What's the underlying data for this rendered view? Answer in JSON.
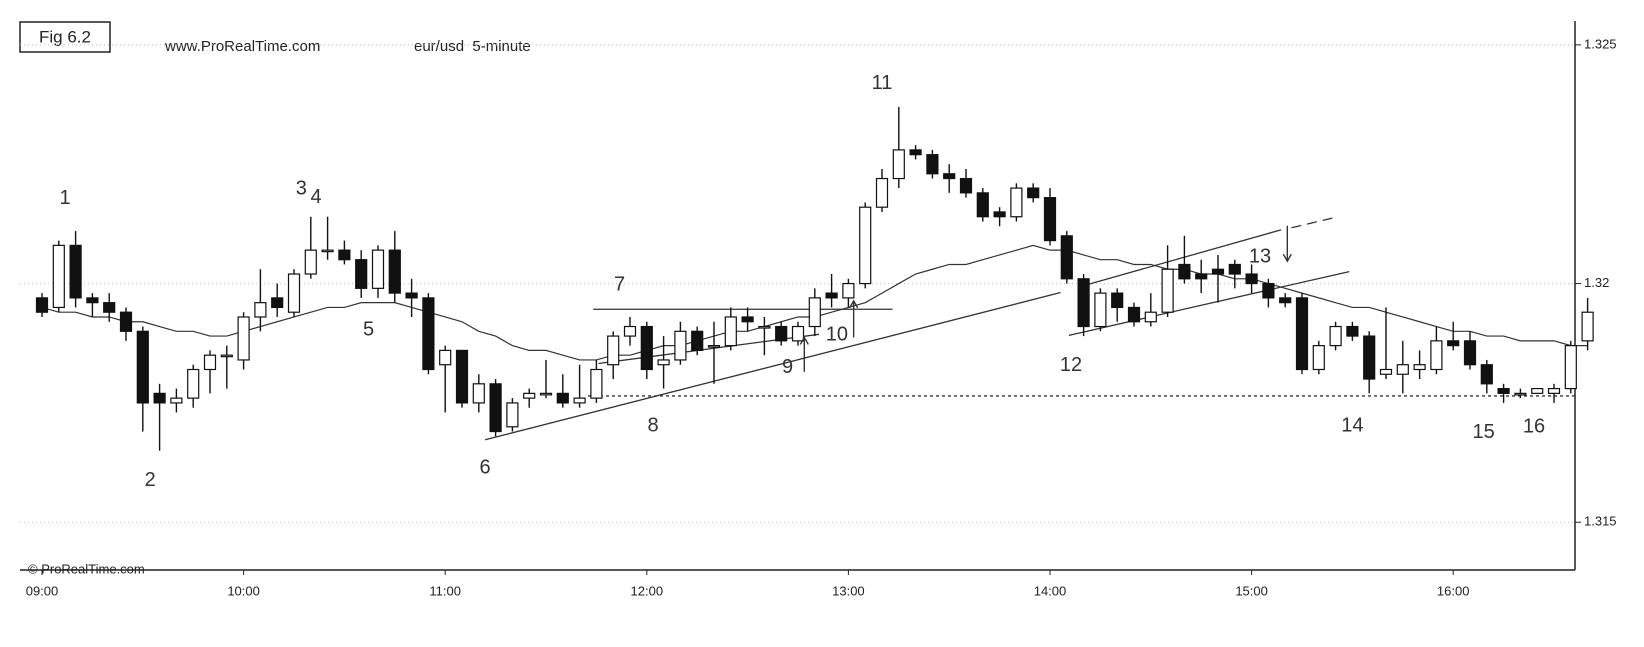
{
  "chart_data": {
    "type": "candlestick",
    "figure_label": "Fig 6.2",
    "source": "www.ProRealTime.com",
    "subtitle": "eur/usd  5-minute",
    "watermark": "© ProRealTime.com",
    "categories": [
      "09:00",
      null,
      null,
      null,
      null,
      null,
      null,
      null,
      null,
      null,
      null,
      null,
      "10:00",
      null,
      null,
      null,
      null,
      null,
      null,
      null,
      null,
      null,
      null,
      null,
      "11:00",
      null,
      null,
      null,
      null,
      null,
      null,
      null,
      null,
      null,
      null,
      null,
      "12:00",
      null,
      null,
      null,
      null,
      null,
      null,
      null,
      null,
      null,
      null,
      null,
      "13:00",
      null,
      null,
      null,
      null,
      null,
      null,
      null,
      null,
      null,
      null,
      null,
      "14:00",
      null,
      null,
      null,
      null,
      null,
      null,
      null,
      null,
      null,
      null,
      null,
      "15:00",
      null,
      null,
      null,
      null,
      null,
      null,
      null,
      null,
      null,
      null,
      null,
      "16:00",
      null,
      null,
      null,
      null,
      null,
      null,
      null,
      null
    ],
    "open": [
      1.3197,
      1.3195,
      1.3208,
      1.3197,
      1.3196,
      1.3194,
      1.319,
      1.3177,
      1.3175,
      1.3176,
      1.3182,
      1.3185,
      1.3184,
      1.3193,
      1.3197,
      1.3194,
      1.3202,
      1.3207,
      1.3207,
      1.3205,
      1.3199,
      1.3207,
      1.3198,
      1.3197,
      1.3183,
      1.3186,
      1.3175,
      1.3179,
      1.317,
      1.3176,
      1.3177,
      1.3177,
      1.3175,
      1.3176,
      1.3183,
      1.3189,
      1.3191,
      1.3183,
      1.3184,
      1.319,
      1.3187,
      1.3187,
      1.3193,
      1.3191,
      1.3191,
      1.3188,
      1.3191,
      1.3198,
      1.3197,
      1.32,
      1.3216,
      1.3222,
      1.3228,
      1.3227,
      1.3223,
      1.3222,
      1.3219,
      1.3215,
      1.3214,
      1.322,
      1.3218,
      1.321,
      1.3201,
      1.3191,
      1.3198,
      1.3195,
      1.3192,
      1.3194,
      1.3204,
      1.3202,
      1.3203,
      1.3204,
      1.3202,
      1.32,
      1.3197,
      1.3197,
      1.3182,
      1.3187,
      1.3191,
      1.3189,
      1.3181,
      1.3181,
      1.3182,
      1.3182,
      1.3188,
      1.3188,
      1.3183,
      1.3178,
      1.3177,
      1.3177,
      1.3177,
      1.3178,
      1.3188
    ],
    "high": [
      1.3198,
      1.3209,
      1.3211,
      1.3198,
      1.3198,
      1.3195,
      1.3191,
      1.3179,
      1.3178,
      1.3183,
      1.3186,
      1.3187,
      1.3194,
      1.3203,
      1.32,
      1.3203,
      1.3214,
      1.3214,
      1.3209,
      1.3207,
      1.3208,
      1.3211,
      1.3201,
      1.3198,
      1.3187,
      1.3186,
      1.3181,
      1.318,
      1.3176,
      1.3178,
      1.3184,
      1.3181,
      1.3183,
      1.3184,
      1.319,
      1.3193,
      1.3192,
      1.3189,
      1.3192,
      1.3191,
      1.3192,
      1.3195,
      1.3195,
      1.3193,
      1.3192,
      1.3192,
      1.3199,
      1.3202,
      1.3201,
      1.3217,
      1.3224,
      1.3237,
      1.3229,
      1.3228,
      1.3225,
      1.3224,
      1.322,
      1.3216,
      1.3221,
      1.3221,
      1.322,
      1.3211,
      1.3202,
      1.3199,
      1.3199,
      1.3196,
      1.3198,
      1.3208,
      1.321,
      1.3205,
      1.3206,
      1.3205,
      1.3204,
      1.3201,
      1.3198,
      1.3198,
      1.3188,
      1.3192,
      1.3192,
      1.319,
      1.3195,
      1.3188,
      1.3186,
      1.3191,
      1.3192,
      1.319,
      1.3184,
      1.3179,
      1.3178,
      1.3178,
      1.3179,
      1.3188,
      1.3197
    ],
    "low": [
      1.3193,
      1.3194,
      1.3195,
      1.3193,
      1.3192,
      1.3188,
      1.3169,
      1.3165,
      1.3173,
      1.3174,
      1.3177,
      1.3178,
      1.3182,
      1.319,
      1.3193,
      1.3193,
      1.3201,
      1.3205,
      1.3204,
      1.3197,
      1.3197,
      1.3196,
      1.3193,
      1.3181,
      1.3173,
      1.3174,
      1.3173,
      1.3168,
      1.3169,
      1.3174,
      1.3176,
      1.3174,
      1.3174,
      1.3175,
      1.318,
      1.3187,
      1.318,
      1.3178,
      1.3183,
      1.3185,
      1.3179,
      1.3186,
      1.319,
      1.3185,
      1.3187,
      1.3187,
      1.3189,
      1.3195,
      1.3195,
      1.3199,
      1.3215,
      1.322,
      1.3226,
      1.3222,
      1.3219,
      1.3218,
      1.3213,
      1.3212,
      1.3213,
      1.3217,
      1.3208,
      1.32,
      1.3189,
      1.319,
      1.3192,
      1.3191,
      1.3191,
      1.3193,
      1.32,
      1.3198,
      1.3196,
      1.3199,
      1.3198,
      1.3195,
      1.3195,
      1.3181,
      1.3181,
      1.3186,
      1.3188,
      1.3177,
      1.318,
      1.3177,
      1.318,
      1.3181,
      1.3186,
      1.3182,
      1.3177,
      1.3175,
      1.3176,
      1.3177,
      1.3175,
      1.3177,
      1.3186
    ],
    "close": [
      1.3194,
      1.3208,
      1.3197,
      1.3196,
      1.3194,
      1.319,
      1.3175,
      1.3175,
      1.3176,
      1.3182,
      1.3185,
      1.3185,
      1.3193,
      1.3196,
      1.3195,
      1.3202,
      1.3207,
      1.3207,
      1.3205,
      1.3199,
      1.3207,
      1.3198,
      1.3197,
      1.3182,
      1.3186,
      1.3175,
      1.3179,
      1.3169,
      1.3175,
      1.3177,
      1.3177,
      1.3175,
      1.3176,
      1.3182,
      1.3189,
      1.3191,
      1.3182,
      1.3184,
      1.319,
      1.3186,
      1.3187,
      1.3193,
      1.3192,
      1.3191,
      1.3188,
      1.3191,
      1.3197,
      1.3197,
      1.32,
      1.3216,
      1.3222,
      1.3228,
      1.3227,
      1.3223,
      1.3222,
      1.3219,
      1.3214,
      1.3214,
      1.322,
      1.3218,
      1.3209,
      1.3201,
      1.3191,
      1.3198,
      1.3195,
      1.3192,
      1.3194,
      1.3203,
      1.3201,
      1.3201,
      1.3202,
      1.3202,
      1.32,
      1.3197,
      1.3196,
      1.3182,
      1.3187,
      1.3191,
      1.3189,
      1.318,
      1.3182,
      1.3183,
      1.3183,
      1.3188,
      1.3187,
      1.3183,
      1.3179,
      1.3177,
      1.3177,
      1.3178,
      1.3178,
      1.3187,
      1.3194
    ],
    "moving_average": {
      "color": "#333333",
      "values": [
        1.3195,
        1.3194,
        1.3194,
        1.3193,
        1.3193,
        1.3192,
        1.3192,
        1.3191,
        1.319,
        1.319,
        1.3189,
        1.3189,
        1.319,
        1.3191,
        1.3192,
        1.3193,
        1.3194,
        1.3195,
        1.3195,
        1.3196,
        1.3196,
        1.3196,
        1.3195,
        1.3194,
        1.3193,
        1.3192,
        1.319,
        1.3189,
        1.3187,
        1.3186,
        1.3186,
        1.3185,
        1.3184,
        1.3184,
        1.3185,
        1.3185,
        1.3186,
        1.3187,
        1.3187,
        1.3188,
        1.3189,
        1.319,
        1.319,
        1.3191,
        1.3192,
        1.3193,
        1.3193,
        1.3194,
        1.3195,
        1.3196,
        1.3198,
        1.32,
        1.3202,
        1.3203,
        1.3204,
        1.3204,
        1.3205,
        1.3206,
        1.3207,
        1.3208,
        1.3207,
        1.3207,
        1.3206,
        1.3205,
        1.3205,
        1.3204,
        1.3204,
        1.3203,
        1.3203,
        1.3202,
        1.3202,
        1.3201,
        1.3201,
        1.32,
        1.3199,
        1.3198,
        1.3197,
        1.3196,
        1.3195,
        1.3195,
        1.3194,
        1.3193,
        1.3192,
        1.3191,
        1.319,
        1.319,
        1.3189,
        1.3189,
        1.3188,
        1.3188,
        1.3188,
        1.3187,
        1.3187
      ]
    },
    "up_color": "#ffffff",
    "down_color": "#111111",
    "ylim": [
      1.314,
      1.3255
    ],
    "yticks": [
      1.315,
      1.32,
      1.325
    ],
    "grid": true,
    "annotations": [
      "1",
      "2",
      "3",
      "4",
      "5",
      "6",
      "7",
      "8",
      "9",
      "10",
      "11",
      "12",
      "13",
      "14",
      "15",
      "16"
    ]
  }
}
